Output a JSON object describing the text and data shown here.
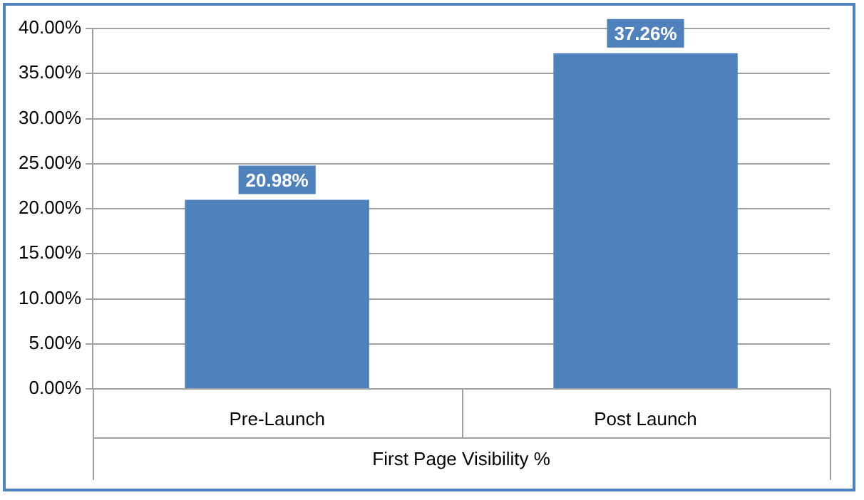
{
  "chart_data": {
    "type": "bar",
    "xlabel": "First Page Visibility %",
    "categories": [
      "Pre-Launch",
      "Post Launch"
    ],
    "values": [
      20.98,
      37.26
    ],
    "value_labels": [
      "20.98%",
      "37.26%"
    ],
    "color": "#4f81bd",
    "ylim": [
      0,
      40
    ],
    "yticks": [
      {
        "value": 0,
        "label": "0.00%"
      },
      {
        "value": 5,
        "label": "5.00%"
      },
      {
        "value": 10,
        "label": "10.00%"
      },
      {
        "value": 15,
        "label": "15.00%"
      },
      {
        "value": 20,
        "label": "20.00%"
      },
      {
        "value": 25,
        "label": "25.00%"
      },
      {
        "value": 30,
        "label": "30.00%"
      },
      {
        "value": 35,
        "label": "35.00%"
      },
      {
        "value": 40,
        "label": "40.00%"
      }
    ],
    "grid": "y"
  }
}
